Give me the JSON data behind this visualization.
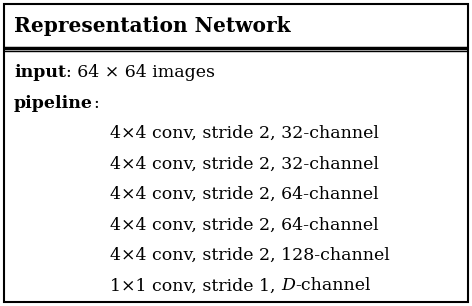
{
  "title": "Representation Network",
  "title_fontsize": 14.5,
  "body_fontsize": 12.5,
  "background_color": "#ffffff",
  "border_color": "#000000",
  "input_bold": "input",
  "input_rest": ": 64 × 64 images",
  "pipeline_bold": "pipeline",
  "pipeline_rest": ":",
  "pipeline_items": [
    "4×4 conv, stride 2, 32-channel",
    "4×4 conv, stride 2, 32-channel",
    "4×4 conv, stride 2, 64-channel",
    "4×4 conv, stride 2, 64-channel",
    "4×4 conv, stride 2, 128-channel"
  ],
  "last_item_prefix": "1×1 conv, stride 1, ",
  "last_item_italic": "D",
  "last_item_suffix": "-channel"
}
